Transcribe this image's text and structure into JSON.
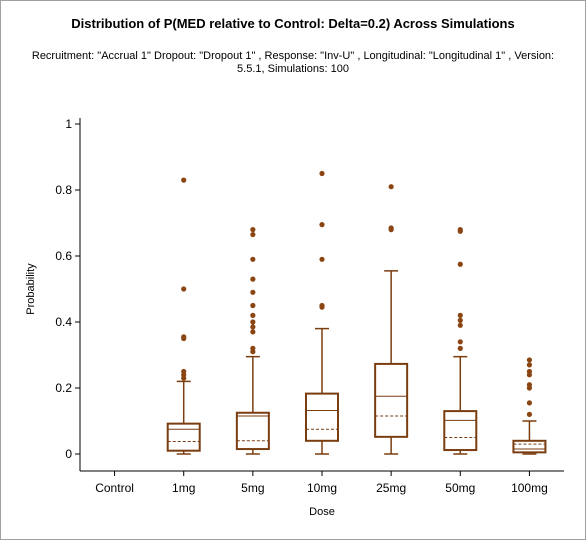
{
  "chart_data": {
    "type": "box",
    "title": "Distribution of P(MED relative to Control: Delta=0.2) Across Simulations",
    "subtitle": "Recruitment: \"Accrual 1\" Dropout: \"Dropout 1\" , Response: \"Inv-U\" , Longitudinal: \"Longitudinal 1\" , Version: 5.5.1, Simulations: 100",
    "xlabel": "Dose",
    "ylabel": "Probability",
    "ylim": [
      0,
      1
    ],
    "yticks": [
      "0",
      "0.2",
      "0.4",
      "0.6",
      "0.8",
      "1"
    ],
    "grid": false,
    "color": "#7a3d10",
    "outlier_color": "#8b4513",
    "categories": [
      "Control",
      "1mg",
      "5mg",
      "10mg",
      "25mg",
      "50mg",
      "100mg"
    ],
    "boxes": [
      null,
      {
        "min": 0.0,
        "q1": 0.01,
        "median": 0.075,
        "mean": 0.038,
        "q3": 0.092,
        "max": 0.22,
        "outliers": [
          0.23,
          0.24,
          0.25,
          0.35,
          0.355,
          0.5,
          0.83
        ]
      },
      {
        "min": 0.0,
        "q1": 0.015,
        "median": 0.115,
        "mean": 0.04,
        "q3": 0.125,
        "max": 0.295,
        "outliers": [
          0.31,
          0.32,
          0.37,
          0.385,
          0.4,
          0.42,
          0.45,
          0.49,
          0.53,
          0.59,
          0.665,
          0.68
        ]
      },
      {
        "min": 0.0,
        "q1": 0.04,
        "median": 0.132,
        "mean": 0.075,
        "q3": 0.183,
        "max": 0.38,
        "outliers": [
          0.445,
          0.45,
          0.59,
          0.695,
          0.85
        ]
      },
      {
        "min": 0.0,
        "q1": 0.052,
        "median": 0.175,
        "mean": 0.115,
        "q3": 0.273,
        "max": 0.555,
        "outliers": [
          0.68,
          0.685,
          0.81
        ]
      },
      {
        "min": 0.0,
        "q1": 0.012,
        "median": 0.102,
        "mean": 0.05,
        "q3": 0.13,
        "max": 0.295,
        "outliers": [
          0.32,
          0.34,
          0.39,
          0.405,
          0.42,
          0.575,
          0.675,
          0.68
        ]
      },
      {
        "min": 0.0,
        "q1": 0.005,
        "median": 0.015,
        "mean": 0.03,
        "q3": 0.04,
        "max": 0.1,
        "outliers": [
          0.12,
          0.155,
          0.2,
          0.21,
          0.24,
          0.25,
          0.27,
          0.285
        ]
      }
    ]
  }
}
